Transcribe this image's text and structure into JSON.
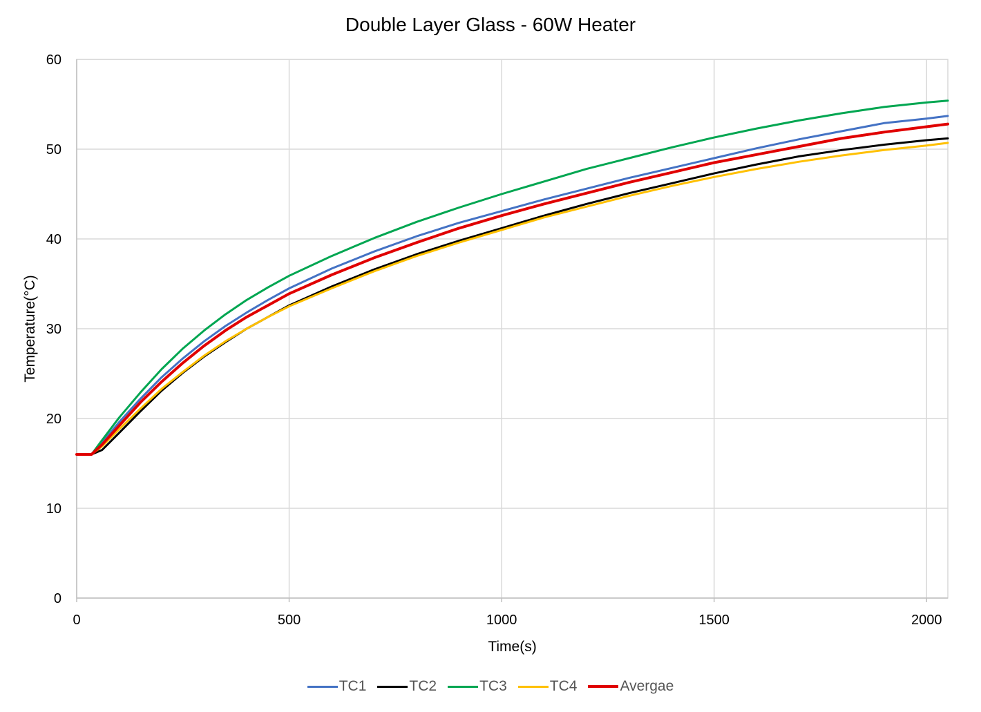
{
  "chart_data": {
    "type": "line",
    "title": "Double Layer Glass - 60W Heater",
    "xlabel": "Time(s)",
    "ylabel": "Temperature(°C)",
    "xlim": [
      0,
      2050
    ],
    "ylim": [
      0,
      60
    ],
    "xticks": [
      0,
      500,
      1000,
      1500,
      2000
    ],
    "yticks": [
      0,
      10,
      20,
      30,
      40,
      50,
      60
    ],
    "grid": true,
    "legend_position": "bottom",
    "x": [
      0,
      35,
      60,
      100,
      150,
      200,
      250,
      300,
      350,
      400,
      450,
      500,
      600,
      700,
      800,
      900,
      1000,
      1100,
      1200,
      1300,
      1400,
      1500,
      1600,
      1700,
      1800,
      1900,
      2000,
      2050
    ],
    "series": [
      {
        "name": "TC1",
        "color": "#4472C4",
        "width": 3,
        "values": [
          16.0,
          16.0,
          17.3,
          19.6,
          22.2,
          24.6,
          26.7,
          28.6,
          30.3,
          31.8,
          33.2,
          34.5,
          36.7,
          38.6,
          40.3,
          41.8,
          43.1,
          44.4,
          45.6,
          46.8,
          47.9,
          49.0,
          50.1,
          51.1,
          52.0,
          52.9,
          53.4,
          53.7
        ]
      },
      {
        "name": "TC2",
        "color": "#000000",
        "width": 3,
        "values": [
          16.0,
          16.0,
          16.5,
          18.4,
          20.8,
          23.1,
          25.1,
          26.9,
          28.5,
          30.0,
          31.3,
          32.6,
          34.7,
          36.6,
          38.3,
          39.8,
          41.2,
          42.6,
          43.9,
          45.1,
          46.2,
          47.3,
          48.3,
          49.2,
          49.9,
          50.5,
          51.0,
          51.2
        ]
      },
      {
        "name": "TC3",
        "color": "#00A651",
        "width": 3,
        "values": [
          16.0,
          16.0,
          17.6,
          20.1,
          22.9,
          25.5,
          27.8,
          29.8,
          31.6,
          33.2,
          34.6,
          35.9,
          38.1,
          40.1,
          41.9,
          43.5,
          45.0,
          46.4,
          47.8,
          49.0,
          50.2,
          51.3,
          52.3,
          53.2,
          54.0,
          54.7,
          55.2,
          55.4
        ]
      },
      {
        "name": "TC4",
        "color": "#FFC000",
        "width": 3,
        "values": [
          16.0,
          16.0,
          16.9,
          18.8,
          21.1,
          23.3,
          25.2,
          27.0,
          28.6,
          30.0,
          31.3,
          32.5,
          34.5,
          36.4,
          38.1,
          39.6,
          41.0,
          42.4,
          43.6,
          44.8,
          45.9,
          46.9,
          47.8,
          48.6,
          49.3,
          49.9,
          50.4,
          50.7
        ]
      },
      {
        "name": "Avergae",
        "color": "#E00000",
        "width": 4,
        "values": [
          16.0,
          16.0,
          17.1,
          19.2,
          21.8,
          24.1,
          26.2,
          28.1,
          29.8,
          31.3,
          32.6,
          33.9,
          36.0,
          37.9,
          39.6,
          41.2,
          42.6,
          43.9,
          45.1,
          46.3,
          47.4,
          48.5,
          49.4,
          50.3,
          51.2,
          51.9,
          52.5,
          52.8
        ]
      }
    ]
  }
}
